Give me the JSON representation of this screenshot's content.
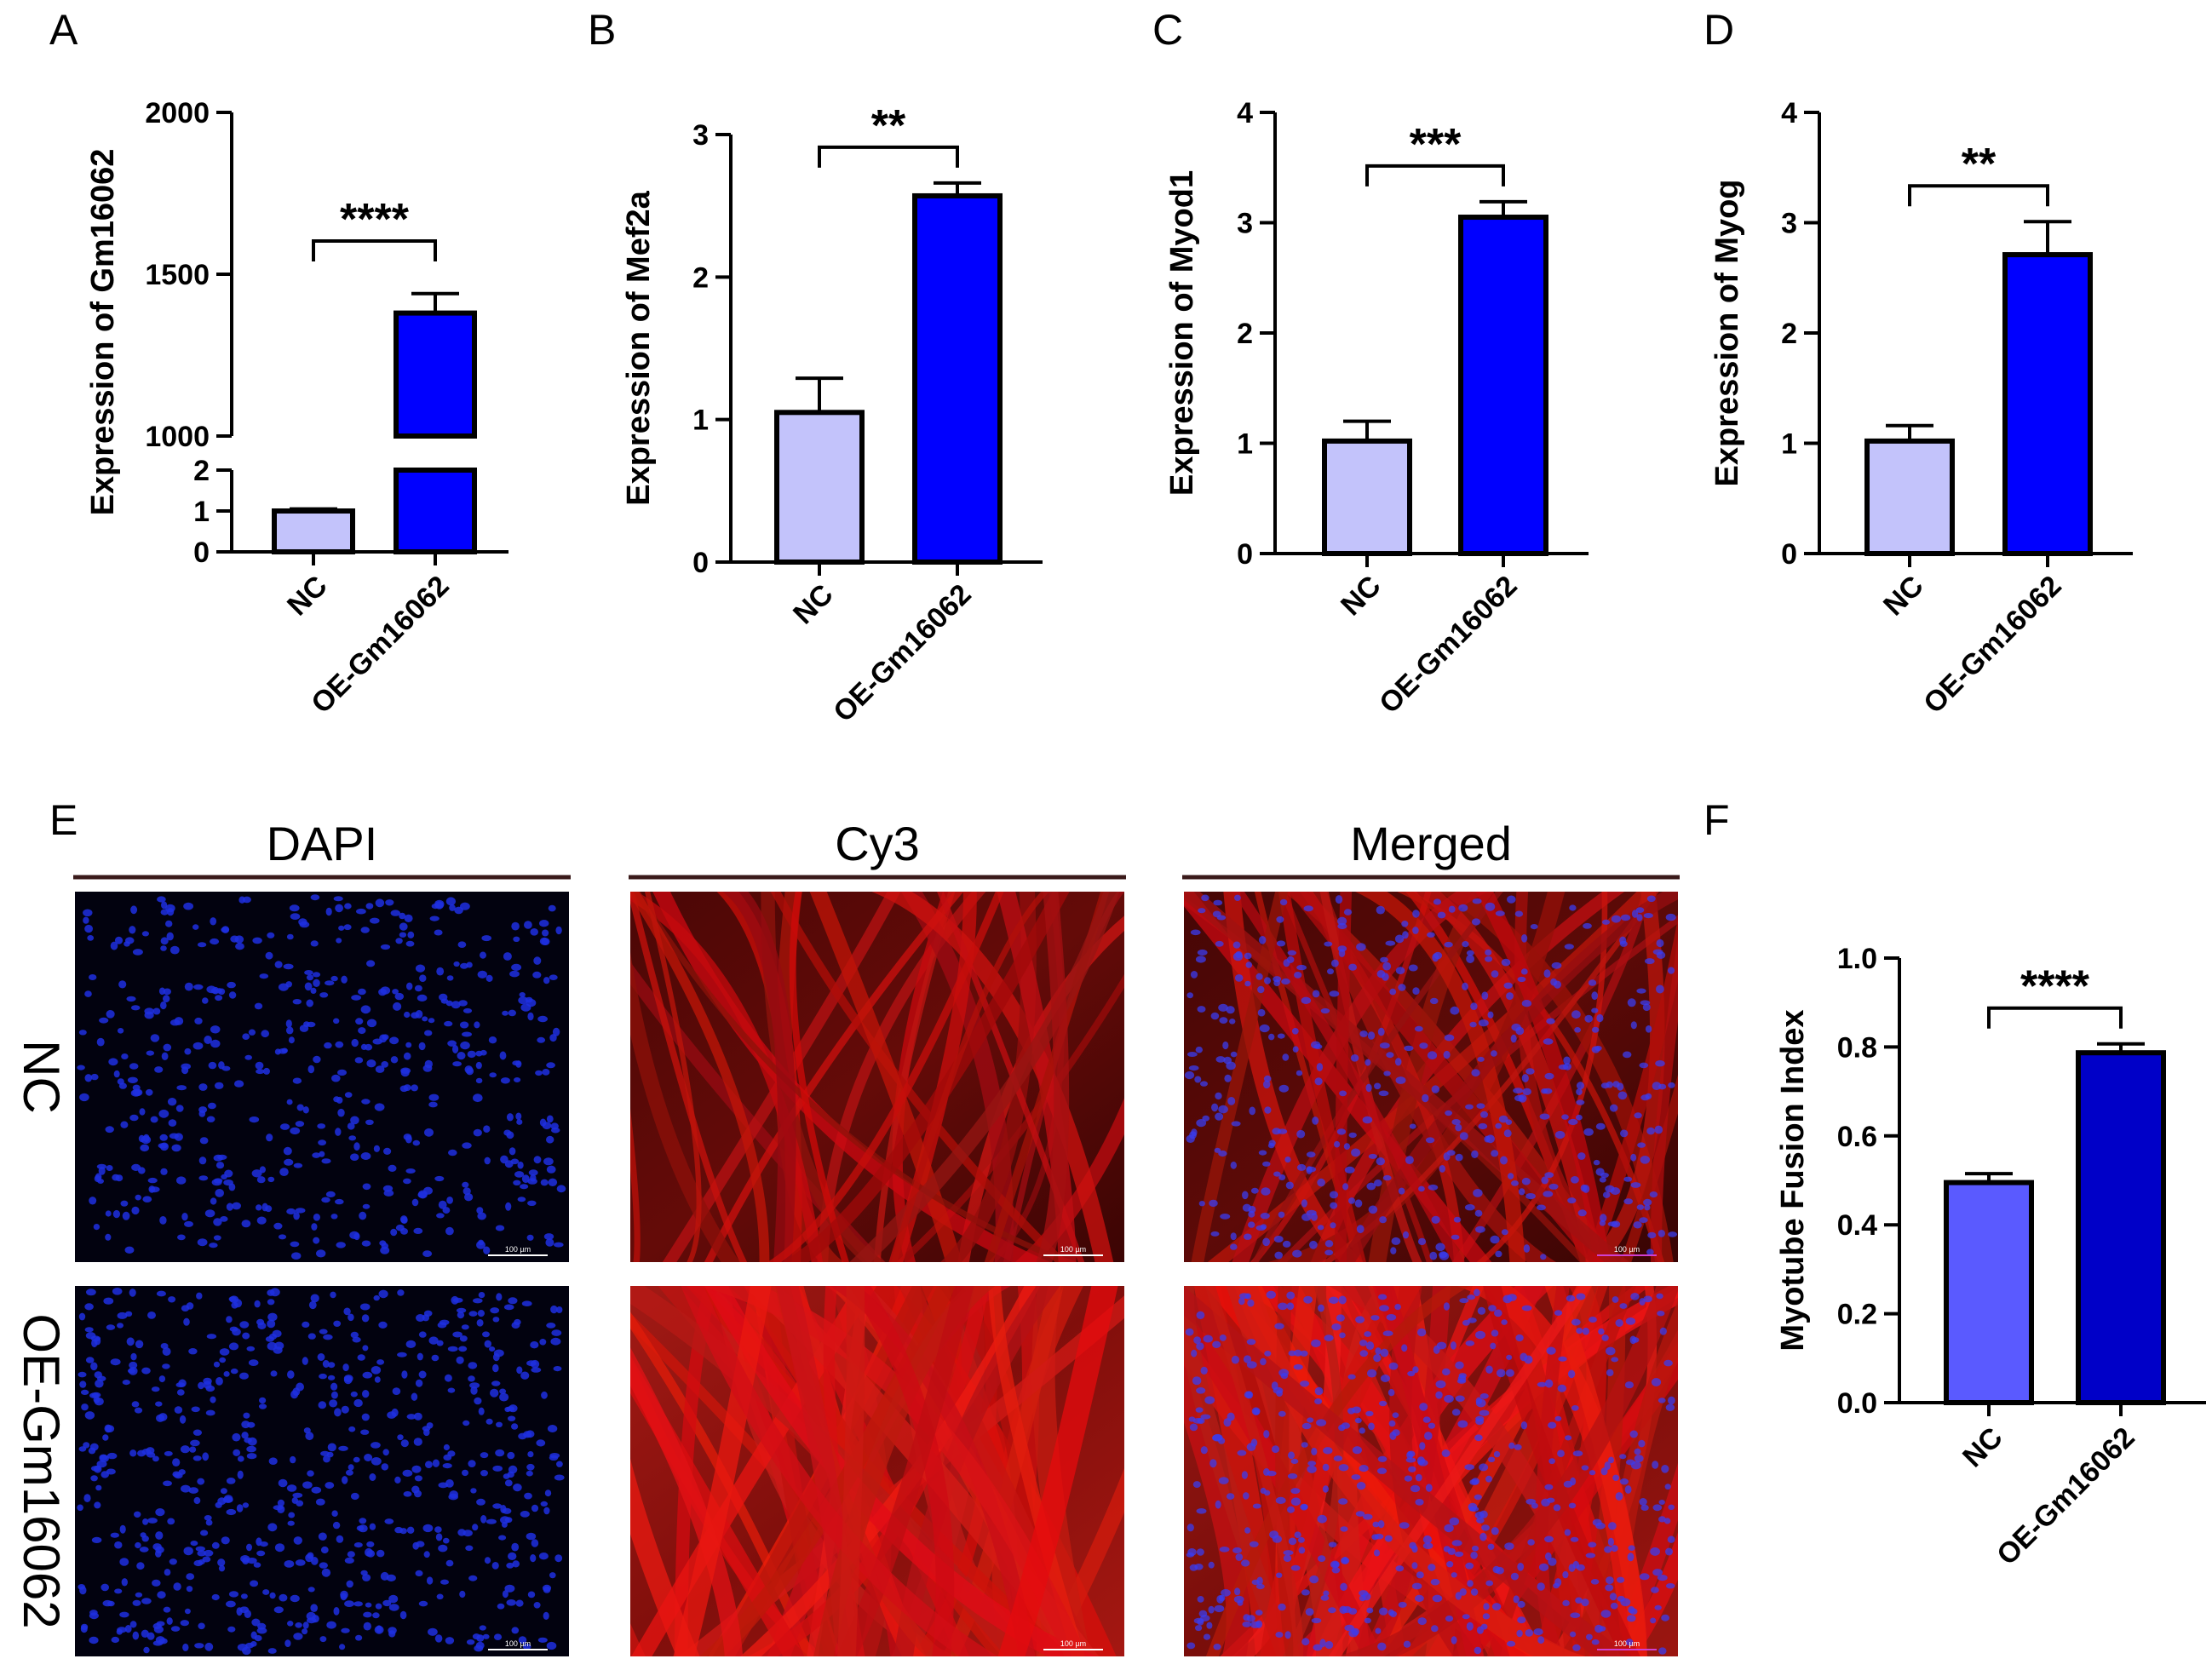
{
  "figure": {
    "panels": {
      "A": "A",
      "B": "B",
      "C": "C",
      "D": "D",
      "E": "E",
      "F": "F"
    },
    "micrographs": {
      "columns": [
        "DAPI",
        "Cy3",
        "Merged"
      ],
      "rows": [
        "NC",
        "OE-Gm16062"
      ],
      "scale_bar_label": "100 µm"
    }
  },
  "colors": {
    "nc_bar_bcd": "#c3c3fb",
    "oe_bar_bcd": "#0000ff",
    "nc_bar_f": "#5a5aff",
    "oe_bar_f": "#0000c8",
    "axis": "#000000",
    "dapi": "#1f2fe0",
    "cy3": "#d11a14",
    "divider": "#3a1a1a"
  },
  "chart_data": [
    {
      "panel": "A",
      "type": "bar",
      "categories": [
        "NC",
        "OE-Gm16062"
      ],
      "values": [
        1.0,
        1380
      ],
      "error": [
        0.05,
        60
      ],
      "ylabel": "Expression of Gm16062",
      "ylim": [
        0,
        2000
      ],
      "broken_axis": {
        "lower": [
          0,
          2
        ],
        "lower_ticks": [
          "0",
          "1",
          "2"
        ],
        "upper": [
          1000,
          2000
        ],
        "upper_ticks": [
          "1000",
          "1500",
          "2000"
        ]
      },
      "significance": "****",
      "bar_colors": [
        "#c3c3fb",
        "#0000ff"
      ]
    },
    {
      "panel": "B",
      "type": "bar",
      "categories": [
        "NC",
        "OE-Gm16062"
      ],
      "values": [
        1.05,
        2.57
      ],
      "error": [
        0.24,
        0.09
      ],
      "ylabel": "Expression of Mef2a",
      "ylim": [
        0,
        3
      ],
      "ticks": [
        "0",
        "1",
        "2",
        "3"
      ],
      "significance": "**",
      "bar_colors": [
        "#c3c3fb",
        "#0000ff"
      ]
    },
    {
      "panel": "C",
      "type": "bar",
      "categories": [
        "NC",
        "OE-Gm16062"
      ],
      "values": [
        1.02,
        3.05
      ],
      "error": [
        0.18,
        0.14
      ],
      "ylabel": "Expression of Myod1",
      "ylim": [
        0,
        4
      ],
      "ticks": [
        "0",
        "1",
        "2",
        "3",
        "4"
      ],
      "significance": "***",
      "bar_colors": [
        "#c3c3fb",
        "#0000ff"
      ]
    },
    {
      "panel": "D",
      "type": "bar",
      "categories": [
        "NC",
        "OE-Gm16062"
      ],
      "values": [
        1.02,
        2.71
      ],
      "error": [
        0.14,
        0.3
      ],
      "ylabel": "Expression of Myog",
      "ylim": [
        0,
        4
      ],
      "ticks": [
        "0",
        "1",
        "2",
        "3",
        "4"
      ],
      "significance": "**",
      "bar_colors": [
        "#c3c3fb",
        "#0000ff"
      ]
    },
    {
      "panel": "F",
      "type": "bar",
      "categories": [
        "NC",
        "OE-Gm16062"
      ],
      "values": [
        0.495,
        0.787
      ],
      "error": [
        0.02,
        0.02
      ],
      "ylabel": "Myotube Fusion Index",
      "ylim": [
        0,
        1.0
      ],
      "ticks": [
        "0.0",
        "0.2",
        "0.4",
        "0.6",
        "0.8",
        "1.0"
      ],
      "significance": "****",
      "bar_colors": [
        "#5a5aff",
        "#0000c8"
      ]
    }
  ]
}
